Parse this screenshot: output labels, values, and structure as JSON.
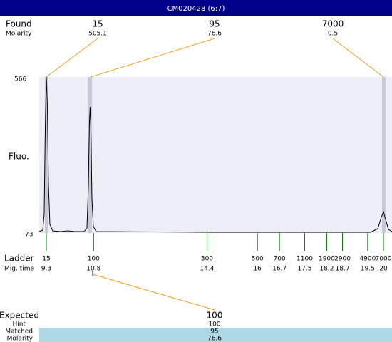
{
  "header": {
    "title": "CM020428 (6:7)"
  },
  "found": {
    "label": "Found",
    "molarity_label": "Molarity",
    "peaks": [
      {
        "size": 15,
        "molarity": 505.1
      },
      {
        "size": 95,
        "molarity": 76.6
      },
      {
        "size": 7000,
        "molarity": 0.5
      }
    ]
  },
  "plot": {
    "y_label": "Fluo.",
    "y_max": 566,
    "y_min": 73
  },
  "ladder": {
    "label": "Ladder",
    "mig_time_label": "Mig. time",
    "peaks": [
      {
        "size": 15,
        "mig_time": 9.3
      },
      {
        "size": 100,
        "mig_time": 10.8
      },
      {
        "size": 300,
        "mig_time": 14.4
      },
      {
        "size": 500,
        "mig_time": 16
      },
      {
        "size": 700,
        "mig_time": 16.7
      },
      {
        "size": 1100,
        "mig_time": 17.5
      },
      {
        "size": 1900,
        "mig_time": 18.2
      },
      {
        "size": 2900,
        "mig_time": 18.7
      },
      {
        "size": 4900,
        "mig_time": 19.5
      },
      {
        "size": 7000,
        "mig_time": 20
      }
    ]
  },
  "expected": {
    "label": "Expected",
    "hint_label": "Hint",
    "matched_label": "Matched",
    "molarity_label": "Molarity",
    "size": 100,
    "hint": 100,
    "matched": 95,
    "molarity": 76.6
  }
}
